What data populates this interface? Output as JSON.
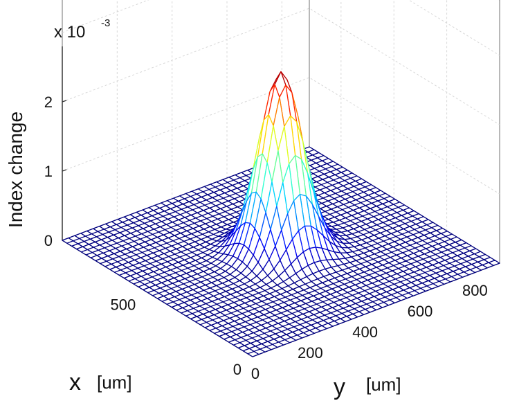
{
  "chart_data": {
    "type": "surface",
    "zlabel": "Index change",
    "z_exponent_label": "x 10",
    "z_exponent_power": "-3",
    "z_scale": 0.001,
    "xlabel_var": "x",
    "xlabel_unit": "[um]",
    "ylabel_var": "y",
    "ylabel_unit": "[um]",
    "xlim": [
      0,
      900
    ],
    "ylim": [
      0,
      900
    ],
    "zlim": [
      0,
      2.6
    ],
    "x_ticks": [
      "0",
      "500"
    ],
    "y_ticks": [
      "0",
      "200",
      "400",
      "600",
      "800"
    ],
    "z_ticks": [
      "0",
      "1",
      "2"
    ],
    "grid": true,
    "colormap": "jet",
    "mesh_color_low": "#2b2bd6",
    "peak": {
      "x": 450,
      "y": 450,
      "z": 2.6
    },
    "mesh_points": 41
  }
}
